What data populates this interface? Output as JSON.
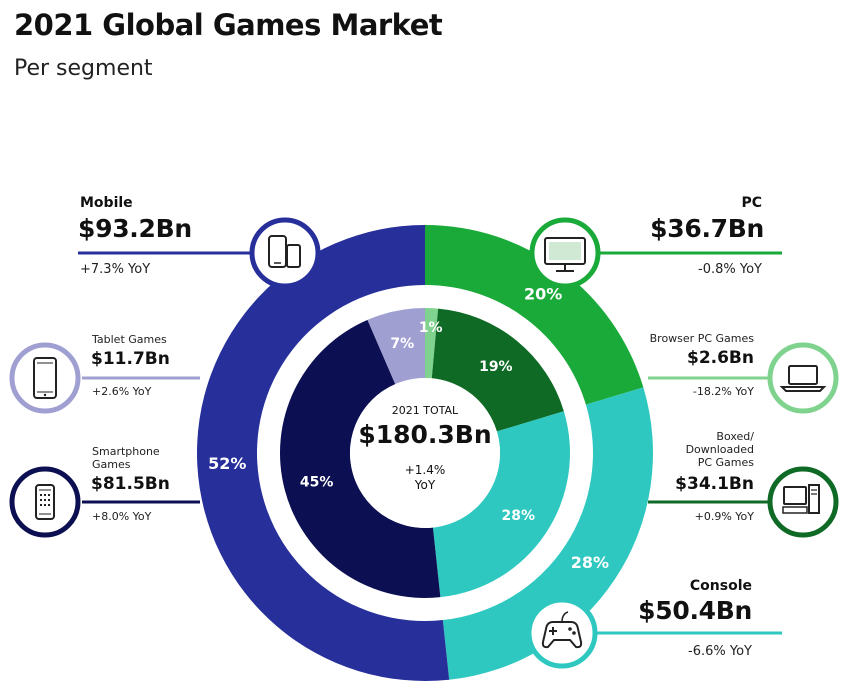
{
  "header": {
    "title": "2021 Global Games Market",
    "subtitle": "Per segment"
  },
  "chart_data": {
    "type": "pie",
    "title": "2021 Global Games Market",
    "subtitle": "Per segment",
    "center": {
      "label": "2021 TOTAL",
      "value": "$180.3Bn",
      "yoy": "+1.4%",
      "yoy_suffix": "YoY"
    },
    "outer_ring": [
      {
        "name": "PC",
        "value": 36.7,
        "pct": 20,
        "pct_label": "20%",
        "value_label": "$36.7Bn",
        "yoy": "-0.8% YoY",
        "color": "#1aaa3a"
      },
      {
        "name": "Console",
        "value": 50.4,
        "pct": 28,
        "pct_label": "28%",
        "value_label": "$50.4Bn",
        "yoy": "-6.6% YoY",
        "color": "#2ec8c0"
      },
      {
        "name": "Mobile",
        "value": 93.2,
        "pct": 52,
        "pct_label": "52%",
        "value_label": "$93.2Bn",
        "yoy": "+7.3% YoY",
        "color": "#262f9a"
      }
    ],
    "inner_ring": [
      {
        "name": "Browser PC Games",
        "value": 2.6,
        "pct": 1,
        "pct_label": "1%",
        "value_label": "$2.6Bn",
        "yoy": "-18.2% YoY",
        "color": "#7fd38e"
      },
      {
        "name": "Boxed/ Downloaded PC Games",
        "value": 34.1,
        "pct": 19,
        "pct_label": "19%",
        "value_label": "$34.1Bn",
        "yoy": "+0.9% YoY",
        "color": "#0e6a25"
      },
      {
        "name": "Console",
        "value": 50.4,
        "pct": 28,
        "pct_label": "28%",
        "color": "#2ec8c0"
      },
      {
        "name": "Smartphone Games",
        "value": 81.5,
        "pct": 45,
        "pct_label": "45%",
        "value_label": "$81.5Bn",
        "yoy": "+8.0% YoY",
        "color": "#0c0f52"
      },
      {
        "name": "Tablet Games",
        "value": 11.7,
        "pct": 7,
        "pct_label": "7%",
        "value_label": "$11.7Bn",
        "yoy": "+2.6% YoY",
        "color": "#a09fd2"
      }
    ]
  },
  "labels": {
    "mobile": {
      "name": "Mobile",
      "value": "$93.2Bn",
      "yoy": "+7.3% YoY"
    },
    "pc": {
      "name": "PC",
      "value": "$36.7Bn",
      "yoy": "-0.8% YoY"
    },
    "tablet": {
      "name": "Tablet Games",
      "value": "$11.7Bn",
      "yoy": "+2.6% YoY"
    },
    "smartphone": {
      "name1": "Smartphone",
      "name2": "Games",
      "value": "$81.5Bn",
      "yoy": "+8.0% YoY"
    },
    "browser": {
      "name": "Browser PC Games",
      "value": "$2.6Bn",
      "yoy": "-18.2% YoY"
    },
    "boxed": {
      "name1": "Boxed/",
      "name2": "Downloaded",
      "name3": "PC Games",
      "value": "$34.1Bn",
      "yoy": "+0.9% YoY"
    },
    "console": {
      "name": "Console",
      "value": "$50.4Bn",
      "yoy": "-6.6% YoY"
    }
  },
  "icons": [
    "devices-icon",
    "monitor-icon",
    "tablet-icon",
    "smartphone-icon",
    "laptop-icon",
    "desktop-computer-icon",
    "gamepad-icon"
  ]
}
